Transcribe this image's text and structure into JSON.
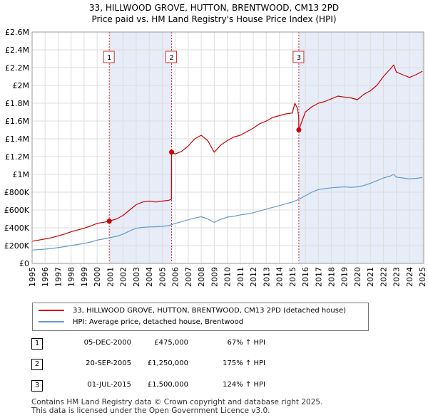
{
  "chart_title_line1": "33, HILLWOOD GROVE, HUTTON, BRENTWOOD, CM13 2PD",
  "chart_title_line2": "Price paid vs. HM Land Registry's House Price Index (HPI)",
  "legend": {
    "property_label": "33, HILLWOOD GROVE, HUTTON, BRENTWOOD, CM13 2PD (detached house)",
    "hpi_label": "HPI: Average price, detached house, Brentwood"
  },
  "sales": [
    {
      "num": "1",
      "date": "05-DEC-2000",
      "price": "£475,000",
      "hpi_change": "67% ↑ HPI"
    },
    {
      "num": "2",
      "date": "20-SEP-2005",
      "price": "£1,250,000",
      "hpi_change": "175% ↑ HPI"
    },
    {
      "num": "3",
      "date": "01-JUL-2015",
      "price": "£1,500,000",
      "hpi_change": "124% ↑ HPI"
    }
  ],
  "footer_line1": "Contains HM Land Registry data © Crown copyright and database right 2025.",
  "footer_line2": "This data is licensed under the Open Government Licence v3.0.",
  "colors": {
    "property": "#cc0000",
    "hpi": "#6699cc",
    "shade": "#e6ecf8",
    "marker_line": "#cc3333",
    "grid": "#dddddd"
  },
  "chart_data": {
    "type": "line",
    "xlabel": "",
    "ylabel": "",
    "xlim": [
      1995.0,
      2025.1
    ],
    "ylim": [
      0,
      2600000
    ],
    "x_ticks": [
      1995,
      1996,
      1997,
      1998,
      1999,
      2000,
      2001,
      2002,
      2003,
      2004,
      2005,
      2006,
      2007,
      2008,
      2009,
      2010,
      2011,
      2012,
      2013,
      2014,
      2015,
      2016,
      2017,
      2018,
      2019,
      2020,
      2021,
      2022,
      2023,
      2024,
      2025
    ],
    "y_ticks": [
      {
        "value": 0,
        "label": "£0"
      },
      {
        "value": 200000,
        "label": "£200K"
      },
      {
        "value": 400000,
        "label": "£400K"
      },
      {
        "value": 600000,
        "label": "£600K"
      },
      {
        "value": 800000,
        "label": "£800K"
      },
      {
        "value": 1000000,
        "label": "£1M"
      },
      {
        "value": 1200000,
        "label": "£1.2M"
      },
      {
        "value": 1400000,
        "label": "£1.4M"
      },
      {
        "value": 1600000,
        "label": "£1.6M"
      },
      {
        "value": 1800000,
        "label": "£1.8M"
      },
      {
        "value": 2000000,
        "label": "£2M"
      },
      {
        "value": 2200000,
        "label": "£2.2M"
      },
      {
        "value": 2400000,
        "label": "£2.4M"
      },
      {
        "value": 2600000,
        "label": "£2.6M"
      }
    ],
    "grid": true,
    "shaded_ranges": [
      [
        2000.93,
        2005.72
      ],
      [
        2015.5,
        2025.1
      ]
    ],
    "sale_markers": [
      {
        "label": "1",
        "x": 2000.93,
        "y": 475000
      },
      {
        "label": "2",
        "x": 2005.72,
        "y": 1250000
      },
      {
        "label": "3",
        "x": 2015.5,
        "y": 1500000
      }
    ],
    "series": [
      {
        "name": "33, HILLWOOD GROVE, HUTTON, BRENTWOOD, CM13 2PD (detached house)",
        "x": [
          1995.0,
          1995.5,
          1996.0,
          1996.5,
          1997.0,
          1997.5,
          1998.0,
          1998.5,
          1999.0,
          1999.5,
          2000.0,
          2000.5,
          2000.93,
          2001.5,
          2002.0,
          2002.5,
          2003.0,
          2003.5,
          2004.0,
          2004.5,
          2005.0,
          2005.5,
          2005.71,
          2005.72,
          2006.0,
          2006.5,
          2007.0,
          2007.5,
          2008.0,
          2008.5,
          2009.0,
          2009.5,
          2010.0,
          2010.5,
          2011.0,
          2011.5,
          2012.0,
          2012.5,
          2013.0,
          2013.5,
          2014.0,
          2014.5,
          2015.0,
          2015.2,
          2015.4,
          2015.49,
          2015.5,
          2016.0,
          2016.5,
          2017.0,
          2017.5,
          2018.0,
          2018.5,
          2019.0,
          2019.5,
          2020.0,
          2020.5,
          2021.0,
          2021.5,
          2022.0,
          2022.5,
          2022.8,
          2023.0,
          2023.5,
          2024.0,
          2024.5,
          2025.0
        ],
        "y": [
          250000,
          262000,
          275000,
          290000,
          310000,
          330000,
          355000,
          375000,
          395000,
          420000,
          450000,
          462000,
          475000,
          500000,
          540000,
          600000,
          660000,
          690000,
          700000,
          690000,
          700000,
          710000,
          720000,
          1250000,
          1230000,
          1260000,
          1320000,
          1400000,
          1440000,
          1380000,
          1250000,
          1330000,
          1380000,
          1420000,
          1440000,
          1480000,
          1520000,
          1570000,
          1600000,
          1640000,
          1660000,
          1680000,
          1690000,
          1800000,
          1740000,
          1650000,
          1500000,
          1700000,
          1760000,
          1800000,
          1820000,
          1850000,
          1880000,
          1870000,
          1860000,
          1840000,
          1900000,
          1940000,
          2000000,
          2100000,
          2180000,
          2230000,
          2150000,
          2120000,
          2090000,
          2120000,
          2160000
        ]
      },
      {
        "name": "HPI: Average price, detached house, Brentwood",
        "x": [
          1995.0,
          1995.5,
          1996.0,
          1996.5,
          1997.0,
          1997.5,
          1998.0,
          1998.5,
          1999.0,
          1999.5,
          2000.0,
          2000.5,
          2001.0,
          2001.5,
          2002.0,
          2002.5,
          2003.0,
          2003.5,
          2004.0,
          2004.5,
          2005.0,
          2005.5,
          2006.0,
          2006.5,
          2007.0,
          2007.5,
          2008.0,
          2008.5,
          2009.0,
          2009.5,
          2010.0,
          2010.5,
          2011.0,
          2011.5,
          2012.0,
          2012.5,
          2013.0,
          2013.5,
          2014.0,
          2014.5,
          2015.0,
          2015.5,
          2016.0,
          2016.5,
          2017.0,
          2017.5,
          2018.0,
          2018.5,
          2019.0,
          2019.5,
          2020.0,
          2020.5,
          2021.0,
          2021.5,
          2022.0,
          2022.5,
          2022.8,
          2023.0,
          2023.5,
          2024.0,
          2024.5,
          2025.0
        ],
        "y": [
          150000,
          155000,
          160000,
          168000,
          178000,
          188000,
          200000,
          212000,
          225000,
          240000,
          262000,
          275000,
          290000,
          305000,
          330000,
          365000,
          395000,
          405000,
          410000,
          412000,
          415000,
          425000,
          450000,
          470000,
          490000,
          510000,
          525000,
          500000,
          460000,
          495000,
          520000,
          530000,
          545000,
          555000,
          570000,
          590000,
          610000,
          630000,
          650000,
          670000,
          690000,
          720000,
          760000,
          800000,
          830000,
          840000,
          850000,
          855000,
          860000,
          855000,
          860000,
          875000,
          900000,
          930000,
          960000,
          980000,
          1000000,
          970000,
          960000,
          950000,
          955000,
          965000
        ]
      }
    ]
  }
}
